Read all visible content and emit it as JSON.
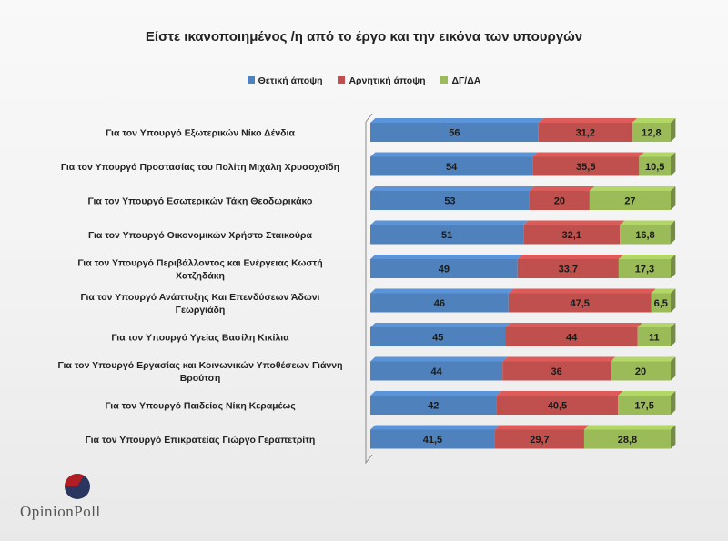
{
  "chart_data": {
    "type": "bar",
    "stacked": true,
    "orientation": "horizontal",
    "title": "Είστε ικανοποιημένος /η από το έργο και την εικόνα των υπουργών",
    "xlim": [
      0,
      100
    ],
    "legend_position": "top",
    "categories": [
      [
        "Για τον Υπουργό Εξωτερικών Νίκο Δένδια"
      ],
      [
        "Για τον Υπουργό Προστασίας του Πολίτη Μιχάλη Χρυσοχοϊδη"
      ],
      [
        "Για τον Υπουργό Εσωτερικών Τάκη Θεοδωρικάκο"
      ],
      [
        "Για τον Υπουργό Οικονομικών Χρήστο Σταικούρα"
      ],
      [
        "Για τον Υπουργό  Περιβάλλοντος και Ενέργειας Κωστή",
        "Χατζηδάκη"
      ],
      [
        "Για τον Υπουργό Ανάπτυξης Και Επενδύσεων Άδωνι",
        "Γεωργιάδη"
      ],
      [
        "Για τον Υπουργό Υγείας Βασίλη Κικίλια"
      ],
      [
        "Για τον Υπουργό Εργασίας και Κοινωνικών Υποθέσεων Γιάννη",
        "Βρούτση"
      ],
      [
        "Για τον Υπουργό Παιδείας Νίκη Κεραμέως"
      ],
      [
        "Για τον Υπουργό Επικρατείας Γιώργο Γεραπετρίτη"
      ]
    ],
    "series": [
      {
        "name": "Θετική άποψη",
        "color": "#4f81bd",
        "values": [
          56,
          54,
          53,
          51,
          49,
          46,
          45,
          44,
          42,
          41.5
        ],
        "labels": [
          "56",
          "54",
          "53",
          "51",
          "49",
          "46",
          "45",
          "44",
          "42",
          "41,5"
        ]
      },
      {
        "name": "Αρνητική άποψη",
        "color": "#c0504d",
        "values": [
          31.2,
          35.5,
          20,
          32.1,
          33.7,
          47.5,
          44,
          36,
          40.5,
          29.7
        ],
        "labels": [
          "31,2",
          "35,5",
          "20",
          "32,1",
          "33,7",
          "47,5",
          "44",
          "36",
          "40,5",
          "29,7"
        ]
      },
      {
        "name": "ΔΓ/ΔΑ",
        "color": "#9bbb59",
        "values": [
          12.8,
          10.5,
          27,
          16.8,
          17.3,
          6.5,
          11,
          20,
          17.5,
          28.8
        ],
        "labels": [
          "12,8",
          "10,5",
          "27",
          "16,8",
          "17,3",
          "6,5",
          "11",
          "20",
          "17,5",
          "28,8"
        ]
      }
    ]
  },
  "logo": {
    "text_a": "Opinion",
    "text_b": "Poll",
    "colors": {
      "red": "#8b1a1a",
      "navy": "#2a3560"
    }
  }
}
